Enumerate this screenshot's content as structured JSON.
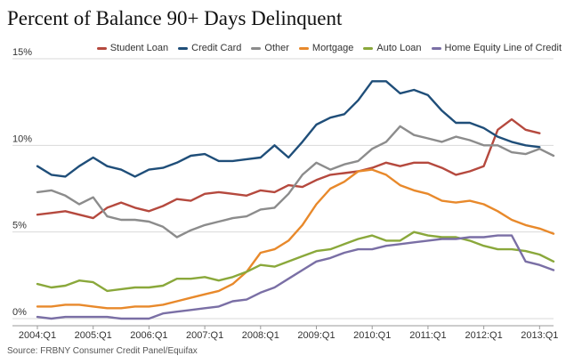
{
  "title": "Percent of Balance 90+ Days Delinquent",
  "source": "Source: FRBNY Consumer Credit Panel/Equifax",
  "chart_data": {
    "type": "line",
    "title": "Percent of Balance 90+ Days Delinquent",
    "xlabel": "",
    "ylabel": "",
    "ylim": [
      0,
      15
    ],
    "yticks": [
      0,
      5,
      10,
      15
    ],
    "ytick_labels": [
      "0%",
      "5%",
      "10%",
      "15%"
    ],
    "xtick_labels": [
      "2004:Q1",
      "2005:Q1",
      "2006:Q1",
      "2007:Q1",
      "2008:Q1",
      "2009:Q1",
      "2010:Q1",
      "2011:Q1",
      "2012:Q1",
      "2013:Q1"
    ],
    "grid": "horizontal",
    "legend_position": "top-right",
    "x": [
      "2004:Q1",
      "2004:Q2",
      "2004:Q3",
      "2004:Q4",
      "2005:Q1",
      "2005:Q2",
      "2005:Q3",
      "2005:Q4",
      "2006:Q1",
      "2006:Q2",
      "2006:Q3",
      "2006:Q4",
      "2007:Q1",
      "2007:Q2",
      "2007:Q3",
      "2007:Q4",
      "2008:Q1",
      "2008:Q2",
      "2008:Q3",
      "2008:Q4",
      "2009:Q1",
      "2009:Q2",
      "2009:Q3",
      "2009:Q4",
      "2010:Q1",
      "2010:Q2",
      "2010:Q3",
      "2010:Q4",
      "2011:Q1",
      "2011:Q2",
      "2011:Q3",
      "2011:Q4",
      "2012:Q1",
      "2012:Q2",
      "2012:Q3",
      "2012:Q4",
      "2013:Q1",
      "2013:Q2"
    ],
    "series": [
      {
        "name": "Student Loan",
        "color": "#b5493e",
        "values": [
          6.0,
          6.1,
          6.2,
          6.0,
          5.8,
          6.4,
          6.7,
          6.4,
          6.2,
          6.5,
          6.9,
          6.8,
          7.2,
          7.3,
          7.2,
          7.1,
          7.4,
          7.3,
          7.7,
          7.6,
          8.0,
          8.3,
          8.4,
          8.5,
          8.7,
          9.0,
          8.8,
          9.0,
          9.0,
          8.7,
          8.3,
          8.5,
          8.8,
          10.9,
          11.5,
          10.9,
          10.7,
          null
        ]
      },
      {
        "name": "Credit Card",
        "color": "#1f4e79",
        "values": [
          8.8,
          8.3,
          8.2,
          8.8,
          9.3,
          8.8,
          8.6,
          8.2,
          8.6,
          8.7,
          9.0,
          9.4,
          9.5,
          9.1,
          9.1,
          9.2,
          9.3,
          10.0,
          9.3,
          10.2,
          11.2,
          11.6,
          11.8,
          12.6,
          13.7,
          13.7,
          13.0,
          13.2,
          12.9,
          12.0,
          11.3,
          11.3,
          11.0,
          10.5,
          10.2,
          10.0,
          9.9,
          null
        ]
      },
      {
        "name": "Other",
        "color": "#8c8c8c",
        "values": [
          7.3,
          7.4,
          7.1,
          6.6,
          7.0,
          5.9,
          5.7,
          5.7,
          5.6,
          5.3,
          4.7,
          5.1,
          5.4,
          5.6,
          5.8,
          5.9,
          6.3,
          6.4,
          7.2,
          8.3,
          9.0,
          8.6,
          8.9,
          9.1,
          9.8,
          10.2,
          11.1,
          10.6,
          10.4,
          10.2,
          10.5,
          10.3,
          10.0,
          10.0,
          9.6,
          9.5,
          9.8,
          9.4
        ]
      },
      {
        "name": "Mortgage",
        "color": "#e8892b",
        "values": [
          0.7,
          0.7,
          0.8,
          0.8,
          0.7,
          0.6,
          0.6,
          0.7,
          0.7,
          0.8,
          1.0,
          1.2,
          1.4,
          1.6,
          2.0,
          2.7,
          3.8,
          4.0,
          4.5,
          5.4,
          6.6,
          7.5,
          7.9,
          8.5,
          8.6,
          8.3,
          7.7,
          7.4,
          7.2,
          6.8,
          6.7,
          6.8,
          6.6,
          6.2,
          5.7,
          5.4,
          5.2,
          4.9
        ]
      },
      {
        "name": "Auto Loan",
        "color": "#8aa83b",
        "values": [
          2.0,
          1.8,
          1.9,
          2.2,
          2.1,
          1.6,
          1.7,
          1.8,
          1.8,
          1.9,
          2.3,
          2.3,
          2.4,
          2.2,
          2.4,
          2.7,
          3.1,
          3.0,
          3.3,
          3.6,
          3.9,
          4.0,
          4.3,
          4.6,
          4.8,
          4.5,
          4.5,
          5.0,
          4.8,
          4.7,
          4.7,
          4.5,
          4.2,
          4.0,
          4.0,
          3.9,
          3.7,
          3.3
        ]
      },
      {
        "name": "Home Equity Line of Credit",
        "color": "#7a6fa5",
        "values": [
          0.1,
          0.0,
          0.1,
          0.1,
          0.1,
          0.1,
          0.0,
          0.0,
          0.0,
          0.3,
          0.4,
          0.5,
          0.6,
          0.7,
          1.0,
          1.1,
          1.5,
          1.8,
          2.3,
          2.8,
          3.3,
          3.5,
          3.8,
          4.0,
          4.0,
          4.2,
          4.3,
          4.4,
          4.5,
          4.6,
          4.6,
          4.7,
          4.7,
          4.8,
          4.8,
          3.3,
          3.1,
          2.8
        ]
      }
    ]
  }
}
